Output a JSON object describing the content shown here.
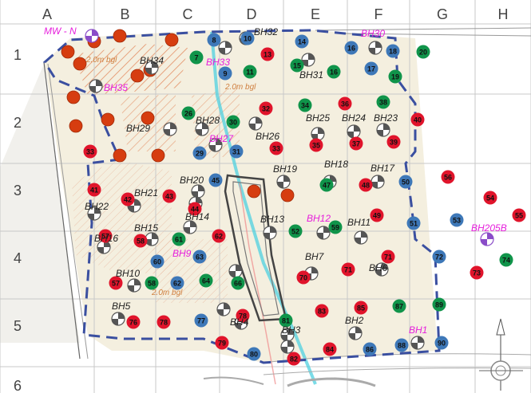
{
  "grid": {
    "col_labels": [
      "A",
      "B",
      "C",
      "D",
      "E",
      "F",
      "G",
      "H"
    ],
    "row_labels": [
      "1",
      "2",
      "3",
      "4",
      "5",
      "6"
    ]
  },
  "colors": {
    "red": "#e0142b",
    "orange_red": "#d63d10",
    "green": "#10944a",
    "blue": "#3e78b8",
    "magenta": "#e61edc",
    "boundary": "#3a4fa0",
    "hatch": "#e07848",
    "water": "#4fd0e0",
    "panel": "#f4efdf",
    "ink": "#222222"
  },
  "labels": {
    "mwn": "MW - N",
    "bh_dark": [
      "BH32",
      "BH34",
      "BH31",
      "BH29",
      "BH28",
      "BH26",
      "BH25",
      "BH24",
      "BH23",
      "BH20",
      "BH19",
      "BH18",
      "BH17",
      "BH21",
      "BH22",
      "BH16",
      "BH15",
      "BH14",
      "BH13",
      "BH11",
      "BH10",
      "BH7",
      "BH6",
      "BH5",
      "BH4",
      "BH3",
      "BH2"
    ],
    "bh_magenta": [
      "BH30",
      "BH33",
      "BH35",
      "BH27",
      "BH12",
      "BH9",
      "BH205B",
      "BH1"
    ],
    "depths": [
      "2.0m bgl",
      "2.0m bgl",
      "2.0m bgl"
    ]
  },
  "points": {
    "red": [
      "13",
      "28",
      "32",
      "33",
      "35",
      "36",
      "37",
      "38",
      "39",
      "40",
      "41",
      "42",
      "43",
      "44",
      "45",
      "46",
      "48",
      "49",
      "50",
      "54",
      "55",
      "57",
      "59",
      "62",
      "64",
      "66",
      "70",
      "71",
      "73",
      "76",
      "78",
      "81",
      "82",
      "83",
      "84",
      "85",
      "86"
    ],
    "green": [
      "7",
      "11",
      "15",
      "16",
      "19",
      "20",
      "26",
      "30",
      "34",
      "35",
      "47",
      "52",
      "58",
      "60",
      "61",
      "67",
      "74",
      "81",
      "87",
      "89"
    ],
    "blue": [
      "8",
      "9",
      "10",
      "14",
      "17",
      "18",
      "29",
      "31",
      "50",
      "51",
      "53",
      "56",
      "63",
      "65",
      "72",
      "77",
      "80",
      "88",
      "90"
    ]
  }
}
